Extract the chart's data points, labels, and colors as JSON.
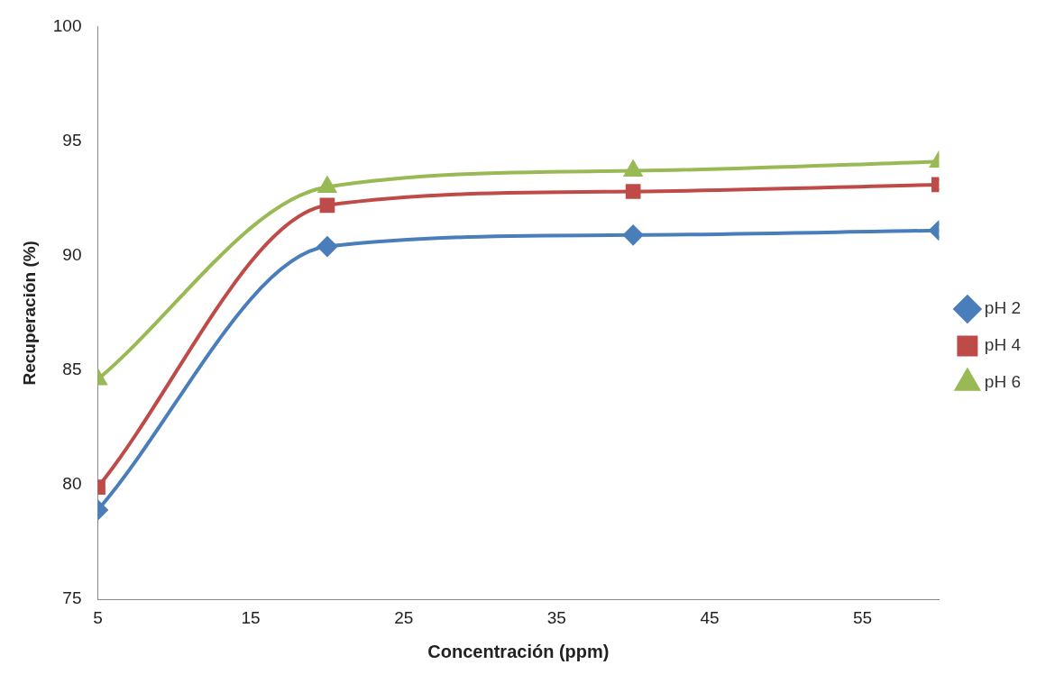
{
  "chart_data": {
    "type": "line",
    "xlabel": "Concentración (ppm)",
    "ylabel": "Recuperación (%)",
    "x": [
      5,
      20,
      40,
      60
    ],
    "series": [
      {
        "name": "pH 2",
        "color": "#4a7ebb",
        "marker": "diamond",
        "values": [
          78.9,
          90.4,
          90.9,
          91.1
        ]
      },
      {
        "name": "pH 4",
        "color": "#be4b48",
        "marker": "square",
        "values": [
          79.9,
          92.2,
          92.8,
          93.1
        ]
      },
      {
        "name": "pH 6",
        "color": "#98b954",
        "marker": "triangle",
        "values": [
          84.6,
          93.0,
          93.7,
          94.1
        ]
      }
    ],
    "xlim": [
      5,
      60
    ],
    "xticks": [
      5,
      15,
      25,
      35,
      45,
      55
    ],
    "ylim": [
      75,
      100
    ],
    "yticks": [
      75,
      80,
      85,
      90,
      95,
      100
    ],
    "grid": false,
    "legend": "right"
  }
}
